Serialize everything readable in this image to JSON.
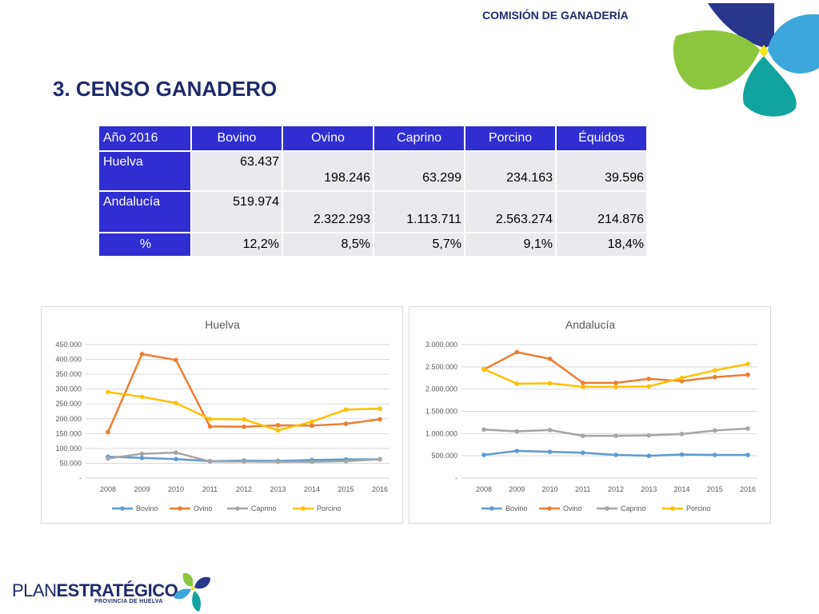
{
  "header": {
    "section_title": "COMISIÓN DE GANADERÍA",
    "page_title": "3. CENSO GANADERO"
  },
  "table": {
    "headers": [
      "Año 2016",
      "Bovino",
      "Ovino",
      "Caprino",
      "Porcino",
      "Équidos"
    ],
    "rows": [
      {
        "label": "Huelva",
        "values": [
          "63.437",
          "198.246",
          "63.299",
          "234.163",
          "39.596"
        ]
      },
      {
        "label": "Andalucía",
        "values": [
          "519.974",
          "2.322.293",
          "1.113.711",
          "2.563.274",
          "214.876"
        ]
      },
      {
        "label": "%",
        "values": [
          "12,2%",
          "8,5%",
          "5,7%",
          "9,1%",
          "18,4%"
        ]
      }
    ]
  },
  "chart_data": [
    {
      "type": "line",
      "title": "Huelva",
      "x": [
        "2008",
        "2009",
        "2010",
        "2011",
        "2012",
        "2013",
        "2014",
        "2015",
        "2016"
      ],
      "y_ticks": [
        "-",
        "50.000",
        "100.000",
        "150.000",
        "200.000",
        "250.000",
        "300.000",
        "350.000",
        "400.000",
        "450.000"
      ],
      "ylim": [
        0,
        450000
      ],
      "grid": true,
      "legend": "bottom",
      "series": [
        {
          "name": "Bovino",
          "color": "#5b9bd5",
          "values": [
            72000,
            68000,
            64000,
            57000,
            59000,
            58000,
            61000,
            63000,
            63437
          ]
        },
        {
          "name": "Ovino",
          "color": "#ed7d31",
          "values": [
            155000,
            418000,
            398000,
            174000,
            173000,
            178000,
            177000,
            183000,
            198246
          ]
        },
        {
          "name": "Caprino",
          "color": "#a5a5a5",
          "values": [
            66000,
            82000,
            86000,
            56000,
            56000,
            55000,
            55000,
            57000,
            63299
          ]
        },
        {
          "name": "Porcino",
          "color": "#ffc000",
          "values": [
            290000,
            274000,
            253000,
            199000,
            198000,
            161000,
            190000,
            231000,
            234163
          ]
        }
      ]
    },
    {
      "type": "line",
      "title": "Andalucía",
      "x": [
        "2008",
        "2009",
        "2010",
        "2011",
        "2012",
        "2013",
        "2014",
        "2015",
        "2016"
      ],
      "y_ticks": [
        "-",
        "500.000",
        "1.000.000",
        "1.500.000",
        "2.000.000",
        "2.500.000",
        "3.000.000"
      ],
      "ylim": [
        0,
        3000000
      ],
      "grid": true,
      "legend": "bottom",
      "series": [
        {
          "name": "Bovino",
          "color": "#5b9bd5",
          "values": [
            520000,
            610000,
            590000,
            570000,
            520000,
            500000,
            530000,
            520000,
            519974
          ]
        },
        {
          "name": "Ovino",
          "color": "#ed7d31",
          "values": [
            2440000,
            2830000,
            2680000,
            2140000,
            2140000,
            2230000,
            2180000,
            2270000,
            2322293
          ]
        },
        {
          "name": "Caprino",
          "color": "#a5a5a5",
          "values": [
            1090000,
            1050000,
            1080000,
            950000,
            950000,
            960000,
            990000,
            1070000,
            1113711
          ]
        },
        {
          "name": "Porcino",
          "color": "#ffc000",
          "values": [
            2450000,
            2120000,
            2130000,
            2050000,
            2050000,
            2060000,
            2250000,
            2420000,
            2563274
          ]
        }
      ]
    }
  ],
  "footer": {
    "plan_light": "PLAN",
    "plan_bold": "ESTRATÉGICO",
    "plan_sub": "PROVINCIA DE HUELVA"
  },
  "colors": {
    "navy": "#1f2a6b",
    "table_header": "#2e2ed1",
    "table_cell": "#e9e9ee",
    "petal_navy": "#27378c",
    "petal_lightblue": "#3da7dc",
    "petal_green": "#8cc63e",
    "petal_teal": "#11a49e",
    "petal_yellow": "#f5e61e"
  }
}
